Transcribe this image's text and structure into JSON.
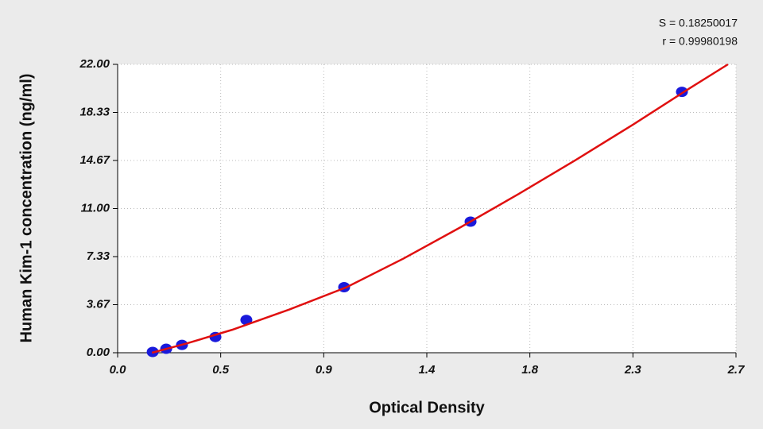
{
  "chart_data": {
    "type": "scatter",
    "annotations": [
      "S = 0.18250017",
      "r = 0.99980198"
    ],
    "x_label": "Optical Density",
    "y_label": "Human Kim-1 concentration (ng/ml)",
    "xlim": [
      0,
      2.7
    ],
    "ylim": [
      0,
      22
    ],
    "xticks": [
      {
        "value": 0,
        "label": "0.0"
      },
      {
        "value": 0.45,
        "label": "0.5"
      },
      0.9,
      {
        "value": 1.35,
        "label": "1.4"
      },
      1.8,
      {
        "value": 2.25,
        "label": "2.3"
      },
      2.7
    ],
    "yticks": [
      {
        "value": 0,
        "label": "0.00"
      },
      {
        "value": 3.667,
        "label": "3.67"
      },
      {
        "value": 7.333,
        "label": "7.33"
      },
      {
        "value": 11,
        "label": "11.00"
      },
      {
        "value": 14.667,
        "label": "14.67"
      },
      {
        "value": 18.333,
        "label": "18.33"
      },
      {
        "value": 22,
        "label": "22.00"
      }
    ],
    "grid": true,
    "series": [
      {
        "mode": "markers",
        "color": "#1a1adb",
        "x": [
          0.153,
          0.212,
          0.281,
          0.427,
          0.562,
          0.989,
          1.541,
          2.464
        ],
        "values": [
          0.06,
          0.3,
          0.6,
          1.2,
          2.5,
          5.0,
          10.0,
          19.9
        ]
      },
      {
        "mode": "line",
        "color": "#e01010",
        "x": [
          0.15,
          0.3,
          0.5,
          0.75,
          1.0,
          1.25,
          1.5,
          1.75,
          2.0,
          2.25,
          2.5,
          2.665
        ],
        "values": [
          0.0,
          0.7,
          1.75,
          3.3,
          5.0,
          7.2,
          9.6,
          12.1,
          14.7,
          17.4,
          20.2,
          22.0
        ]
      }
    ]
  }
}
